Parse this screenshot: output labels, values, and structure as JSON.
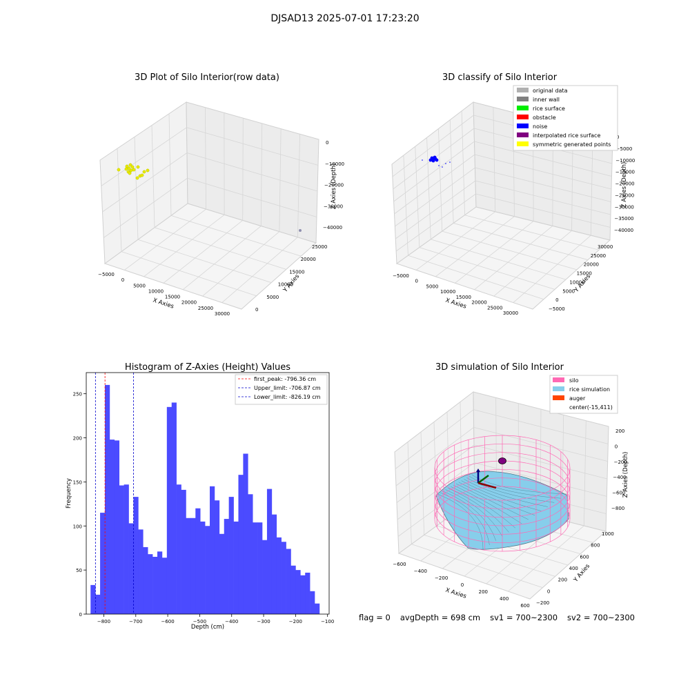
{
  "figure_title": "DJSAD13 2025-07-01 17:23:20",
  "footer": {
    "flag": "flag = 0",
    "avg_depth": "avgDepth = 698 cm",
    "sv1": "sv1 = 700~2300",
    "sv2": "sv2 = 700~2300"
  },
  "colors": {
    "histogram_bar": "#4b4bff",
    "first_peak_line": "#ff0000",
    "limit_lines": "#0000cc",
    "raw_points": "#e8e800",
    "noise": "#0000ff",
    "silo_wire": "#ff69b4",
    "rice_surface": "#87ceeb"
  },
  "chart_data": [
    {
      "type": "scatter3d",
      "title": "3D Plot of Silo Interior(row data)",
      "xlabel": "X Axies",
      "ylabel": "Y Axies",
      "zlabel": "Z Axies (Depth)",
      "x_ticks": [
        "−5000",
        "0",
        "5000",
        "10000",
        "15000",
        "20000",
        "25000",
        "30000"
      ],
      "y_ticks": [
        "0",
        "5000",
        "10000",
        "15000",
        "20000",
        "25000"
      ],
      "z_ticks": [
        "0",
        "−10000",
        "−20000",
        "−30000",
        "−40000"
      ],
      "points_color": "#e8e800"
    },
    {
      "type": "scatter3d",
      "title": "3D classify of Silo Interior",
      "xlabel": "X Axies",
      "ylabel": "Y Axies",
      "zlabel": "Z Axies (Depth)",
      "x_ticks": [
        "−5000",
        "0",
        "5000",
        "10000",
        "15000",
        "20000",
        "25000",
        "30000"
      ],
      "y_ticks": [
        "−5000",
        "0",
        "5000",
        "10000",
        "15000",
        "20000",
        "25000",
        "30000"
      ],
      "z_ticks": [
        "0",
        "−5000",
        "−10000",
        "−15000",
        "−20000",
        "−25000",
        "−30000",
        "−35000",
        "−40000"
      ],
      "legend": [
        {
          "label": "original data",
          "color": "#b0b0b0"
        },
        {
          "label": "inner wall",
          "color": "#808080"
        },
        {
          "label": "rice surface",
          "color": "#00ee00"
        },
        {
          "label": "obstacle",
          "color": "#ff0000"
        },
        {
          "label": "noise",
          "color": "#0000ff"
        },
        {
          "label": "interpolated rice surface",
          "color": "#800080"
        },
        {
          "label": "symmetric generated points",
          "color": "#ffff00"
        }
      ]
    },
    {
      "type": "bar",
      "title": "Histogram of Z-Axies (Height) Values",
      "xlabel": "Depth (cm)",
      "ylabel": "Frequency",
      "xlim": [
        -855,
        -95
      ],
      "ylim": [
        0,
        274
      ],
      "x_ticks": [
        -800,
        -700,
        -600,
        -500,
        -400,
        -300,
        -200,
        -100
      ],
      "x_tick_labels": [
        "−800",
        "−700",
        "−600",
        "−500",
        "−400",
        "−300",
        "−200",
        "−100"
      ],
      "y_ticks": [
        0,
        50,
        100,
        150,
        200,
        250
      ],
      "bin_start": -841.5,
      "bin_width": 14.92,
      "values": [
        33,
        22,
        115,
        260,
        198,
        197,
        146,
        147,
        103,
        133,
        96,
        76,
        68,
        65,
        71,
        64,
        235,
        240,
        147,
        141,
        109,
        109,
        120,
        105,
        100,
        145,
        129,
        91,
        108,
        133,
        105,
        158,
        182,
        136,
        104,
        104,
        84,
        142,
        113,
        87,
        82,
        74,
        55,
        50,
        44,
        47,
        26,
        12
      ],
      "vlines": [
        {
          "label": "first_peak: -796.36 cm",
          "x": -796.36,
          "color": "#ff0000"
        },
        {
          "label": "Upper_limit: -706.87 cm",
          "x": -706.87,
          "color": "#0000cc"
        },
        {
          "label": "Lower_limit: -826.19 cm",
          "x": -826.19,
          "color": "#0000cc"
        }
      ]
    },
    {
      "type": "surface3d",
      "title": "3D simulation of Silo Interior",
      "xlabel": "X Axies",
      "ylabel": "Y Axies",
      "zlabel": "Z Axies (Depth)",
      "x_ticks": [
        "−600",
        "−400",
        "−200",
        "0",
        "200",
        "400",
        "600"
      ],
      "y_ticks": [
        "−200",
        "0",
        "200",
        "400",
        "600",
        "800",
        "1000"
      ],
      "z_ticks": [
        "200",
        "0",
        "−200",
        "−400",
        "−600",
        "−800"
      ],
      "legend": [
        {
          "label": "silo",
          "color": "#ff69b4"
        },
        {
          "label": "rice simulation",
          "color": "#87ceeb"
        },
        {
          "label": "auger",
          "color": "#ff4500"
        },
        {
          "label": "center(-15,411)",
          "color": ""
        }
      ]
    }
  ]
}
